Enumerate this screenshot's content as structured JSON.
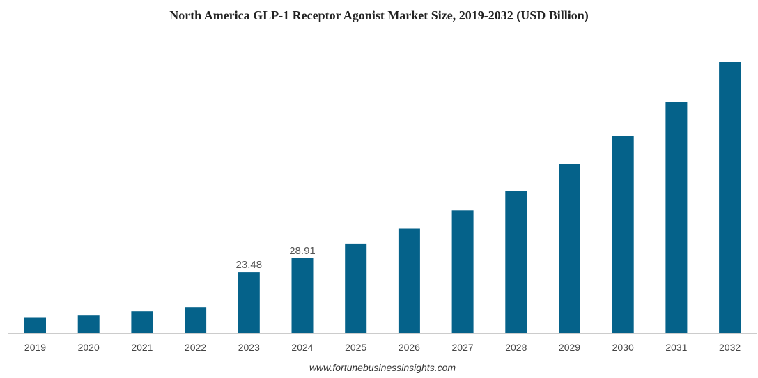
{
  "chart_data": {
    "type": "bar",
    "title": "North America GLP-1 Receptor Agonist Market Size, 2019-2032 (USD Billion)",
    "xlabel": "",
    "ylabel": "",
    "categories": [
      "2019",
      "2020",
      "2021",
      "2022",
      "2023",
      "2024",
      "2025",
      "2026",
      "2027",
      "2028",
      "2029",
      "2030",
      "2031",
      "2032"
    ],
    "values": [
      6.0,
      6.9,
      8.5,
      10.1,
      23.48,
      28.91,
      34.5,
      40.2,
      47.2,
      54.7,
      65.1,
      75.8,
      88.8,
      104.2
    ],
    "data_labels": [
      {
        "index": 4,
        "text": "23.48"
      },
      {
        "index": 5,
        "text": "28.91"
      }
    ],
    "bar_color": "#05628a",
    "axis_color": "#cccccc",
    "ylim": [
      0,
      110
    ],
    "grid": false,
    "legend": "none"
  },
  "source": "www.fortunebusinessinsights.com"
}
